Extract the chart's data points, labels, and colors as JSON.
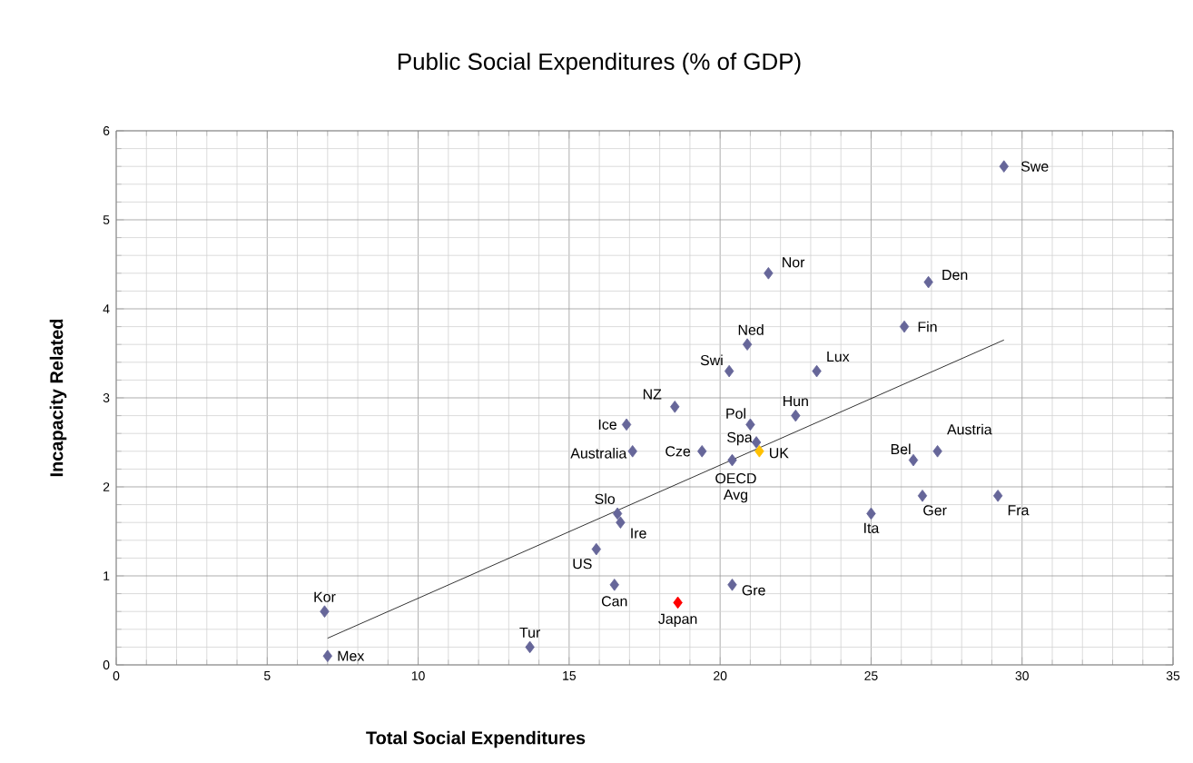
{
  "chart_data": {
    "type": "scatter",
    "title": "Public Social Expenditures (% of GDP)",
    "xlabel": "Total Social Expenditures",
    "ylabel": "Incapacity Related",
    "xlim": [
      0,
      35
    ],
    "xticks": [
      0,
      5,
      10,
      15,
      20,
      25,
      30,
      35
    ],
    "ylim": [
      0,
      6
    ],
    "yticks": [
      0,
      1,
      2,
      3,
      4,
      5,
      6
    ],
    "grid": true,
    "series": [
      {
        "marker": "diamond",
        "x": [
          29.4,
          21.6,
          26.9,
          26.1,
          20.9,
          23.2,
          20.3,
          18.5,
          22.5,
          21.0,
          16.9,
          21.2,
          19.4,
          17.1,
          21.3,
          20.4,
          26.4,
          27.2,
          26.7,
          29.2,
          25.0,
          16.6,
          16.7,
          15.9,
          16.5,
          20.4,
          18.6,
          6.9,
          7.0,
          13.7
        ],
        "values": [
          5.6,
          4.4,
          4.3,
          3.8,
          3.6,
          3.3,
          3.3,
          2.9,
          2.8,
          2.7,
          2.7,
          2.5,
          2.4,
          2.4,
          2.4,
          2.3,
          2.3,
          2.4,
          1.9,
          1.9,
          1.7,
          1.7,
          1.6,
          1.3,
          0.9,
          0.9,
          0.7,
          0.6,
          0.1,
          0.2
        ],
        "colors": [
          "#666699",
          "#666699",
          "#666699",
          "#666699",
          "#666699",
          "#666699",
          "#666699",
          "#666699",
          "#666699",
          "#666699",
          "#666699",
          "#666699",
          "#666699",
          "#666699",
          "#ffc000",
          "#666699",
          "#666699",
          "#666699",
          "#666699",
          "#666699",
          "#666699",
          "#666699",
          "#666699",
          "#666699",
          "#666699",
          "#666699",
          "#ff0000",
          "#666699",
          "#666699",
          "#666699"
        ]
      },
      {
        "type": "line",
        "marker": "none",
        "line_style": "solid",
        "color": "#000000",
        "x": [
          7.0,
          29.4
        ],
        "values": [
          0.3,
          3.65
        ]
      }
    ],
    "annotations": [
      {
        "text": "Swe",
        "x": 29.4,
        "y": 5.6
      },
      {
        "text": "Nor",
        "x": 21.6,
        "y": 4.4
      },
      {
        "text": "Den",
        "x": 26.9,
        "y": 4.3
      },
      {
        "text": "Fin",
        "x": 26.1,
        "y": 3.8
      },
      {
        "text": "Ned",
        "x": 20.9,
        "y": 3.6
      },
      {
        "text": "Lux",
        "x": 23.2,
        "y": 3.3
      },
      {
        "text": "Swi",
        "x": 20.3,
        "y": 3.3
      },
      {
        "text": "NZ",
        "x": 18.5,
        "y": 2.9
      },
      {
        "text": "Hun",
        "x": 22.5,
        "y": 2.8
      },
      {
        "text": "Pol",
        "x": 21.0,
        "y": 2.7
      },
      {
        "text": "Ice",
        "x": 16.9,
        "y": 2.7
      },
      {
        "text": "Spa",
        "x": 21.2,
        "y": 2.5
      },
      {
        "text": "Cze",
        "x": 19.4,
        "y": 2.4
      },
      {
        "text": "Australia",
        "x": 17.1,
        "y": 2.4
      },
      {
        "text": "UK",
        "x": 21.3,
        "y": 2.4
      },
      {
        "text": "OECD Avg",
        "x": 20.4,
        "y": 2.3
      },
      {
        "text": "Bel",
        "x": 26.4,
        "y": 2.3
      },
      {
        "text": "Austria",
        "x": 27.2,
        "y": 2.4
      },
      {
        "text": "Ger",
        "x": 26.7,
        "y": 1.9
      },
      {
        "text": "Fra",
        "x": 29.2,
        "y": 1.9
      },
      {
        "text": "Ita",
        "x": 25.0,
        "y": 1.7
      },
      {
        "text": "Slo",
        "x": 16.6,
        "y": 1.7
      },
      {
        "text": "Ire",
        "x": 16.7,
        "y": 1.6
      },
      {
        "text": "US",
        "x": 15.9,
        "y": 1.3
      },
      {
        "text": "Can",
        "x": 16.5,
        "y": 0.9
      },
      {
        "text": "Gre",
        "x": 20.4,
        "y": 0.9
      },
      {
        "text": "Japan",
        "x": 18.6,
        "y": 0.7
      },
      {
        "text": "Kor",
        "x": 6.9,
        "y": 0.6
      },
      {
        "text": "Mex",
        "x": 7.0,
        "y": 0.1
      },
      {
        "text": "Tur",
        "x": 13.7,
        "y": 0.2
      }
    ]
  }
}
